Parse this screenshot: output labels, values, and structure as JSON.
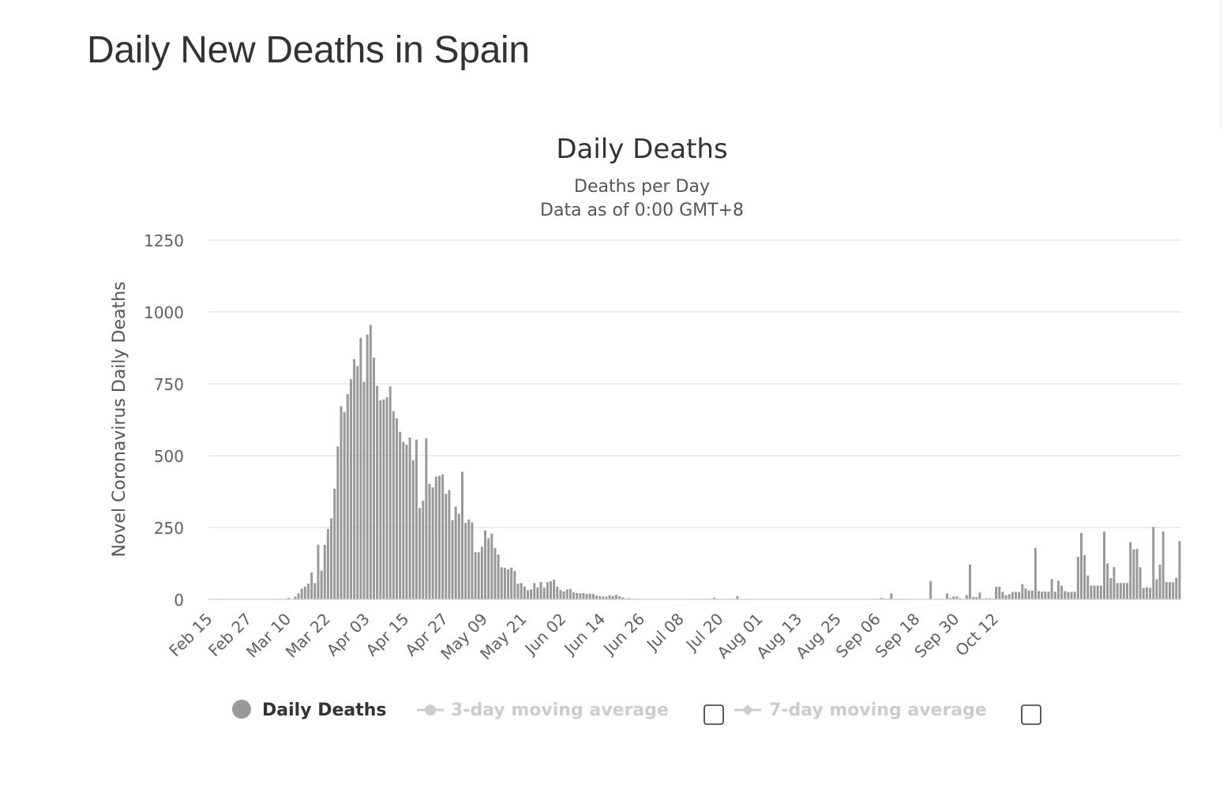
{
  "page": {
    "title": "Daily New Deaths in Spain"
  },
  "colors": {
    "bar": "#999999",
    "grid": "#e6e6e6",
    "axis": "#ccd6eb",
    "legend_inactive": "#cccccc"
  },
  "chart_data": {
    "type": "bar",
    "title": "Daily Deaths",
    "subtitle_lines": [
      "Deaths per Day",
      "Data as of 0:00 GMT+8"
    ],
    "ylabel": "Novel Coronavirus Daily Deaths",
    "ylim": [
      0,
      1250
    ],
    "yticks": [
      "0",
      "250",
      "500",
      "750",
      "1000",
      "1250"
    ],
    "x_start": "Feb 15",
    "x_tick_labels": [
      "Feb 15",
      "Feb 27",
      "Mar 10",
      "Mar 22",
      "Apr 03",
      "Apr 15",
      "Apr 27",
      "May 09",
      "May 21",
      "Jun 02",
      "Jun 14",
      "Jun 26",
      "Jul 08",
      "Jul 20",
      "Aug 01",
      "Aug 13",
      "Aug 25",
      "Sep 06",
      "Sep 18",
      "Sep 30",
      "Oct 12"
    ],
    "grid": true,
    "legend_position": "bottom",
    "series": [
      {
        "name": "Daily Deaths",
        "values": [
          0,
          0,
          0,
          0,
          0,
          0,
          0,
          0,
          0,
          0,
          0,
          0,
          0,
          0,
          0,
          0,
          0,
          0,
          0,
          0,
          0,
          0,
          0,
          0,
          5,
          0,
          10,
          21,
          37,
          45,
          55,
          94,
          57,
          190,
          100,
          190,
          245,
          282,
          385,
          532,
          672,
          652,
          714,
          766,
          836,
          812,
          910,
          757,
          921,
          955,
          841,
          743,
          692,
          696,
          703,
          741,
          655,
          630,
          583,
          548,
          538,
          563,
          484,
          556,
          318,
          343,
          561,
          402,
          390,
          427,
          430,
          435,
          367,
          380,
          276,
          323,
          298,
          444,
          266,
          278,
          268,
          164,
          164,
          183,
          240,
          213,
          229,
          179,
          156,
          112,
          110,
          104,
          111,
          99,
          55,
          57,
          45,
          32,
          35,
          57,
          42,
          61,
          41,
          60,
          63,
          69,
          44,
          33,
          28,
          35,
          36,
          25,
          22,
          21,
          22,
          19,
          20,
          19,
          13,
          12,
          10,
          9,
          14,
          11,
          16,
          11,
          7,
          3,
          4,
          2,
          1,
          1,
          1,
          0,
          1,
          0,
          0,
          1,
          0,
          0,
          0,
          0,
          0,
          0,
          0,
          0,
          2,
          0,
          1,
          0,
          0,
          0,
          0,
          0,
          6,
          0,
          0,
          0,
          0,
          0,
          0,
          11,
          0,
          0,
          0,
          0,
          0,
          0,
          0,
          0,
          0,
          0,
          0,
          0,
          0,
          0,
          0,
          0,
          0,
          0,
          0,
          0,
          0,
          0,
          0,
          0,
          0,
          0,
          0,
          0,
          0,
          0,
          0,
          0,
          0,
          0,
          0,
          0,
          0,
          0,
          0,
          0,
          0,
          2,
          3,
          5,
          3,
          3,
          21,
          0,
          0,
          0,
          0,
          0,
          0,
          0,
          0,
          0,
          0,
          0,
          64,
          0,
          0,
          0,
          0,
          21,
          5,
          10,
          10,
          4,
          0,
          15,
          121,
          8,
          8,
          24,
          3,
          4,
          4,
          2,
          44,
          44,
          26,
          15,
          18,
          26,
          26,
          26,
          53,
          38,
          31,
          31,
          178,
          29,
          27,
          28,
          27,
          71,
          27,
          65,
          48,
          29,
          26,
          26,
          27,
          148,
          231,
          154,
          83,
          48,
          48,
          48,
          48,
          236,
          125,
          74,
          113,
          57,
          57,
          57,
          57,
          199,
          174,
          176,
          112,
          40,
          43,
          40,
          252,
          70,
          121,
          237,
          60,
          60,
          60,
          75,
          203
        ]
      }
    ]
  },
  "legend": {
    "items": [
      {
        "label": "Daily Deaths",
        "active": true
      },
      {
        "label": "3-day moving average",
        "active": false
      },
      {
        "label": "7-day moving average",
        "active": false
      }
    ]
  }
}
